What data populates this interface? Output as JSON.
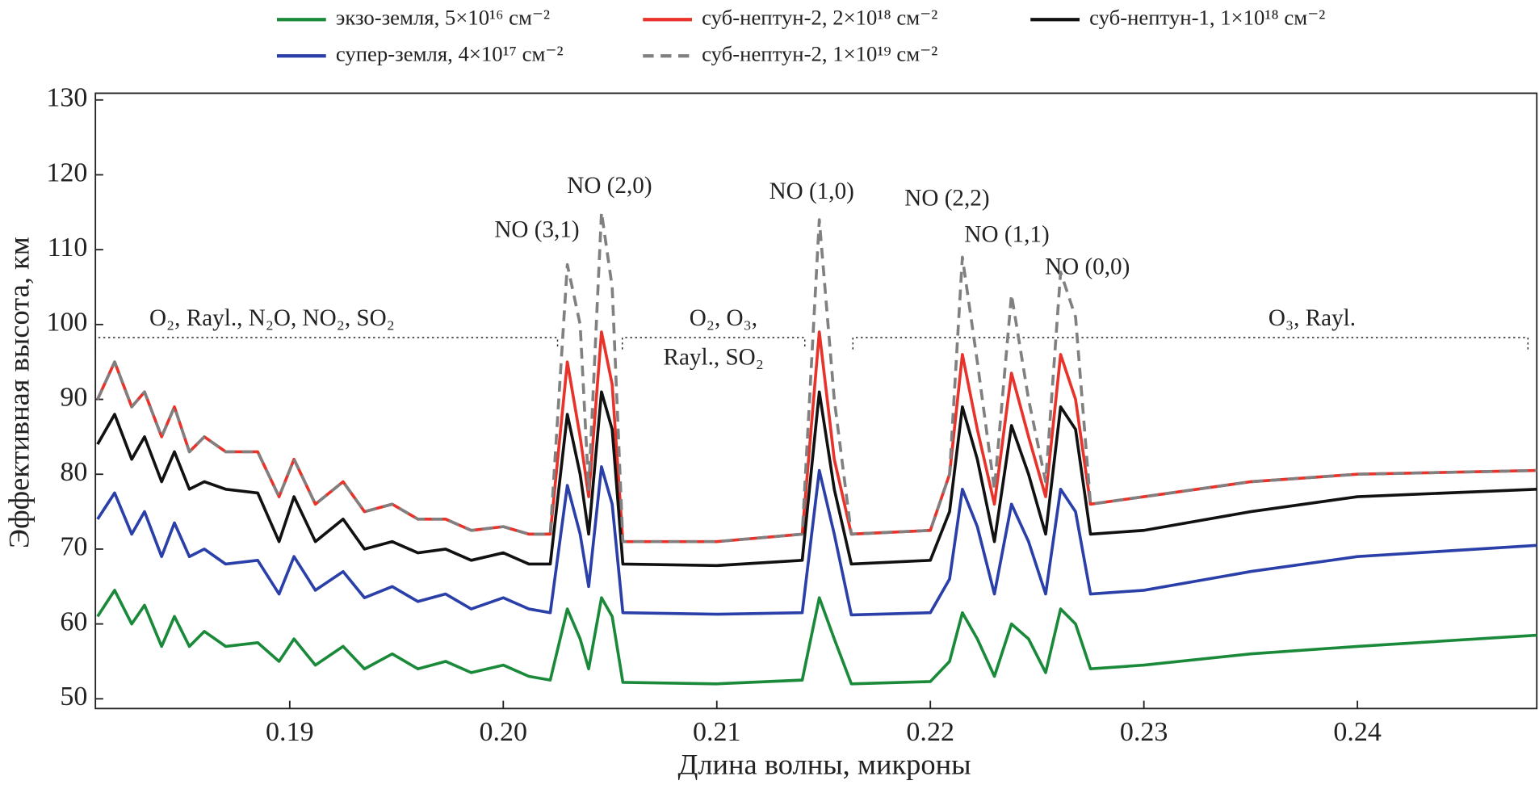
{
  "chart_data": {
    "type": "line",
    "xlabel": "Длина волны, микроны",
    "ylabel": "Эффективная высота, км",
    "xlim": [
      0.1809,
      0.2484
    ],
    "ylim": [
      48.7,
      130.9
    ],
    "xticks": [
      0.19,
      {
        "value": 0.2,
        "label": "0.20"
      },
      0.21,
      0.22,
      0.23,
      0.24
    ],
    "yticks": [
      50,
      60,
      70,
      80,
      90,
      100,
      110,
      120,
      130
    ],
    "grid": false,
    "annotations": [
      "NO (3,1)",
      "NO (2,0)",
      "NO (1,0)",
      "NO (2,2)",
      "NO (1,1)",
      "NO (0,0)",
      "O₂, Rayl., N₂O, NO₂, SO₂",
      "O₂, O₃,",
      "Rayl., SO₂",
      "O₃, Rayl."
    ],
    "x": [
      0.181,
      0.1818,
      0.1826,
      0.1832,
      0.184,
      0.1846,
      0.1853,
      0.186,
      0.187,
      0.1885,
      0.1895,
      0.1902,
      0.1912,
      0.1925,
      0.1935,
      0.1948,
      0.196,
      0.1973,
      0.1985,
      0.2,
      0.2012,
      0.2022,
      0.203,
      0.2036,
      0.204,
      0.2046,
      0.2051,
      0.2056,
      0.21,
      0.214,
      0.2148,
      0.2155,
      0.2163,
      0.22,
      0.2209,
      0.2215,
      0.2222,
      0.223,
      0.2238,
      0.2246,
      0.2254,
      0.2261,
      0.2268,
      0.2275,
      0.23,
      0.235,
      0.24,
      0.2484
    ],
    "series": [
      {
        "name": "экзо-земля, 5×10¹⁶ см⁻²",
        "color": "#1a8a3a",
        "linestyle": "solid",
        "values": [
          61,
          64.5,
          60,
          62.5,
          57,
          61,
          57,
          59,
          57,
          57.5,
          55,
          58,
          54.5,
          57,
          54,
          56,
          54,
          55,
          53.5,
          54.5,
          53,
          52.5,
          62,
          58,
          54,
          63.5,
          61,
          52.2,
          52,
          52.5,
          63.5,
          58,
          52,
          52.3,
          55,
          61.5,
          58,
          53,
          60,
          58,
          53.5,
          62,
          60,
          54,
          54.5,
          56,
          57,
          58.5
        ]
      },
      {
        "name": "суб-нептун-2, 2×10¹⁸ см⁻²",
        "color": "#e8322a",
        "linestyle": "solid",
        "values": [
          90,
          95,
          89,
          91,
          85,
          89,
          83,
          85,
          83,
          83,
          77,
          82,
          76,
          79,
          75,
          76,
          74,
          74,
          72.5,
          73,
          72,
          72,
          95,
          85,
          77,
          99,
          92,
          71,
          71,
          72,
          99,
          82,
          72,
          72.5,
          80,
          96,
          86,
          76,
          93.5,
          85,
          77,
          96,
          90,
          76,
          77,
          79,
          80,
          80.5
        ]
      },
      {
        "name": "суб-нептун-1, 1×10¹⁸ см⁻²",
        "color": "#111111",
        "linestyle": "solid",
        "values": [
          84,
          88,
          82,
          85,
          79,
          83,
          78,
          79,
          78,
          77.5,
          71,
          77,
          71,
          74,
          70,
          71,
          69.5,
          70,
          68.5,
          69.5,
          68,
          68,
          88,
          80,
          72,
          91,
          86,
          68,
          67.8,
          68.5,
          91,
          78,
          68,
          68.5,
          75,
          89,
          82,
          71,
          86.5,
          80,
          72,
          89,
          86,
          72,
          72.5,
          75,
          77,
          78
        ]
      },
      {
        "name": "супер-земля, 4×10¹⁷ см⁻²",
        "color": "#2a3fa8",
        "linestyle": "solid",
        "values": [
          74,
          77.5,
          72,
          75,
          69,
          73.5,
          69,
          70,
          68,
          68.5,
          64,
          69,
          64.5,
          67,
          63.5,
          65,
          63,
          64,
          62,
          63.5,
          62,
          61.5,
          78.5,
          72,
          65,
          81,
          76,
          61.5,
          61.3,
          61.5,
          80.5,
          72,
          61.2,
          61.5,
          66,
          78,
          73,
          64,
          76,
          71,
          64,
          78,
          75,
          64,
          64.5,
          67,
          69,
          70.5
        ]
      },
      {
        "name": "суб-нептун-2, 1×10¹⁹ см⁻²",
        "color": "#808080",
        "linestyle": "dashed",
        "values": [
          90,
          95,
          89,
          91,
          85,
          89,
          83,
          85,
          83,
          83,
          77,
          82,
          76,
          79,
          75,
          76,
          74,
          74,
          72.5,
          73,
          72,
          72,
          108,
          100,
          78,
          115,
          105,
          71,
          71,
          72,
          114,
          90,
          72,
          72.5,
          80,
          109,
          95,
          78,
          104,
          90,
          79,
          107,
          101,
          76,
          77,
          79,
          80,
          80.5
        ]
      }
    ]
  }
}
